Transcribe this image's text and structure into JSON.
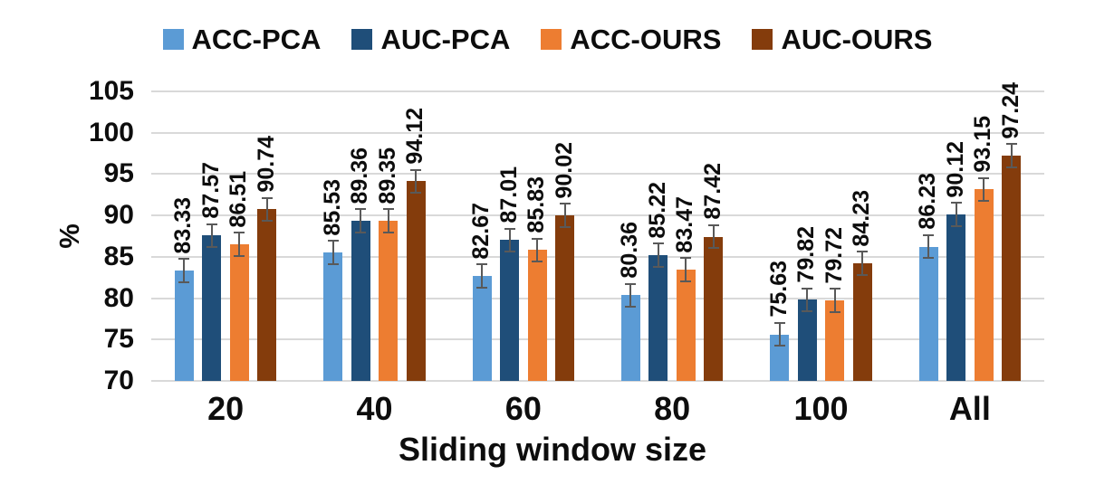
{
  "chart_data": {
    "type": "bar",
    "title": "",
    "xlabel": "Sliding window size",
    "ylabel": "%",
    "categories": [
      "20",
      "40",
      "60",
      "80",
      "100",
      "All"
    ],
    "series": [
      {
        "name": "ACC-PCA",
        "color": "#5B9BD5",
        "values": [
          83.33,
          85.53,
          82.67,
          80.36,
          75.63,
          86.23
        ]
      },
      {
        "name": "AUC-PCA",
        "color": "#1F4E79",
        "values": [
          87.57,
          89.36,
          87.01,
          85.22,
          79.82,
          90.12
        ]
      },
      {
        "name": "ACC-OURS",
        "color": "#ED7D31",
        "values": [
          86.51,
          89.35,
          85.83,
          83.47,
          79.72,
          93.15
        ]
      },
      {
        "name": "AUC-OURS",
        "color": "#843C0C",
        "values": [
          90.74,
          94.12,
          90.02,
          87.42,
          84.23,
          97.24
        ]
      }
    ],
    "ylim": [
      70,
      105
    ],
    "yticks": [
      70,
      75,
      80,
      85,
      90,
      95,
      100,
      105
    ],
    "grid": true,
    "legend_position": "top",
    "error_bars": {
      "visible": true,
      "approx_magnitude": 1.5,
      "color": "#595959"
    },
    "value_labels": {
      "rotated": true,
      "decimals": 2
    },
    "colors": {
      "grid": "#D9D9D9",
      "text": "#0d0d0d",
      "background": "#FFFFFF"
    }
  }
}
